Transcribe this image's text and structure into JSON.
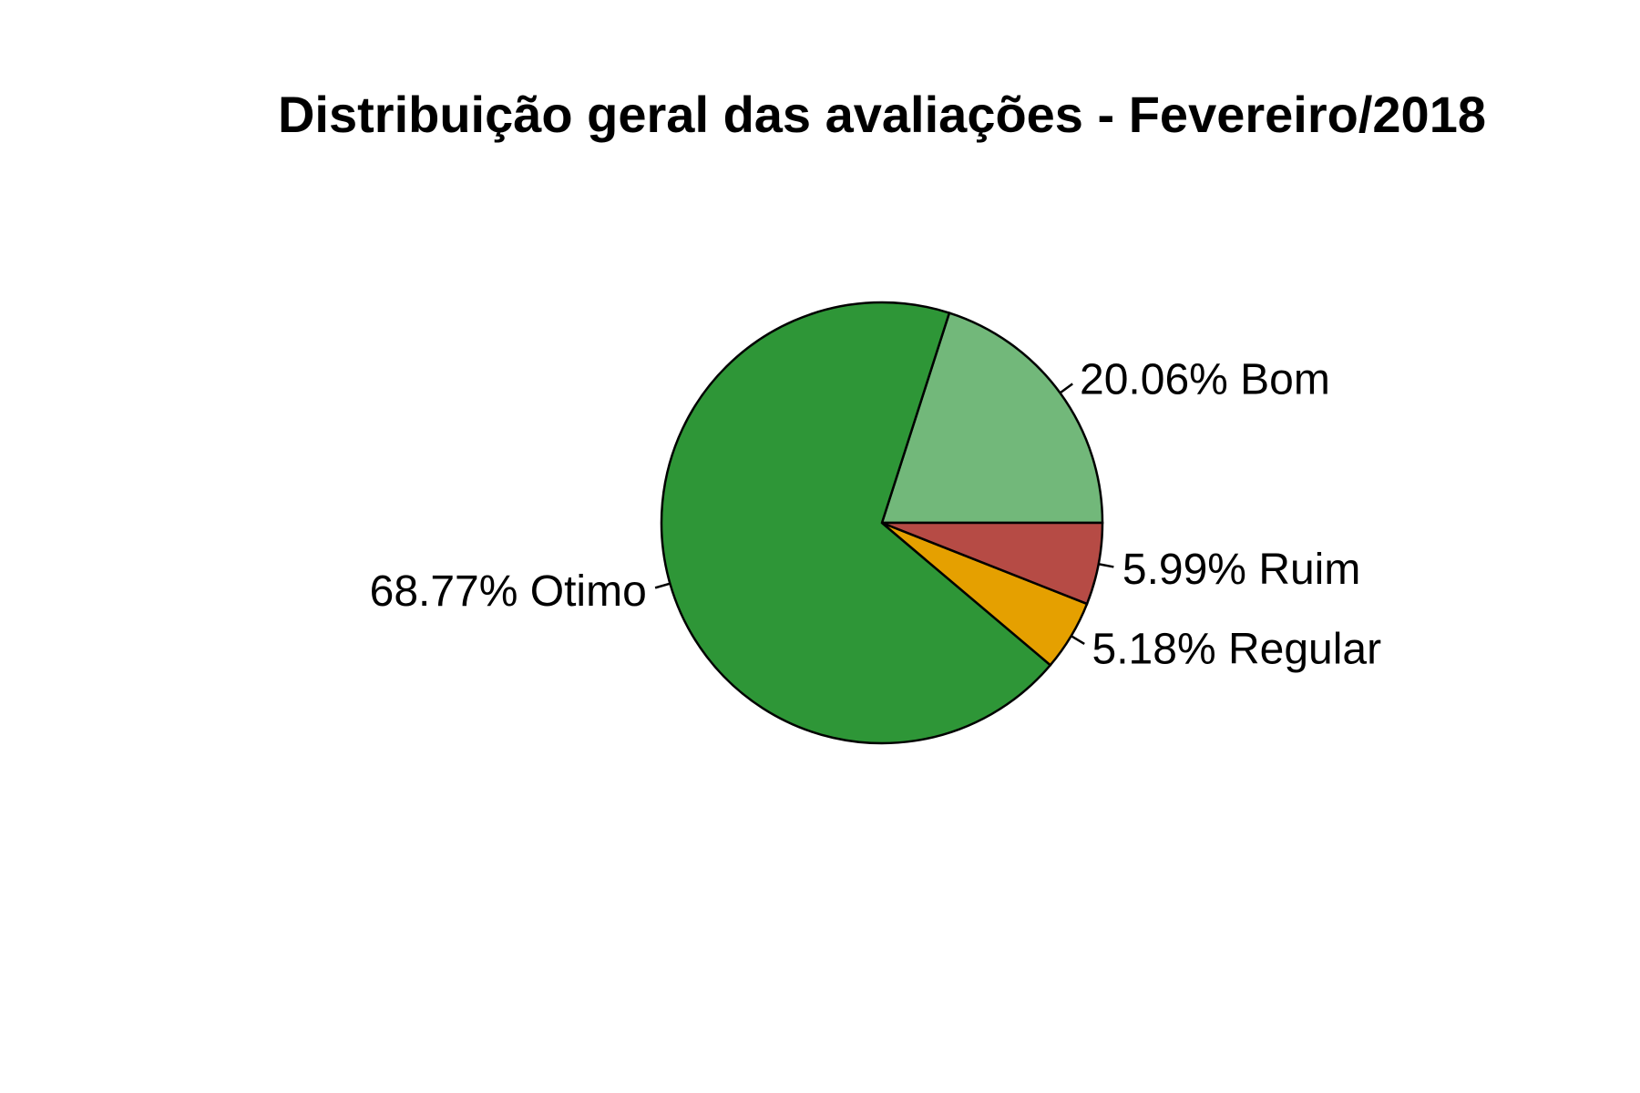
{
  "chart_data": {
    "type": "pie",
    "title": "Distribuição geral das avaliações - Fevereiro/2018",
    "start_angle_deg": 0,
    "direction": "counterclockwise",
    "slices": [
      {
        "label": "Bom",
        "value": 20.06,
        "display": "20.06% Bom",
        "color": "#72B87A"
      },
      {
        "label": "Otimo",
        "value": 68.77,
        "display": "68.77% Otimo",
        "color": "#2E9637"
      },
      {
        "label": "Regular",
        "value": 5.18,
        "display": "5.18% Regular",
        "color": "#E5A000"
      },
      {
        "label": "Ruim",
        "value": 5.99,
        "display": "5.99% Ruim",
        "color": "#B64B45"
      }
    ]
  }
}
